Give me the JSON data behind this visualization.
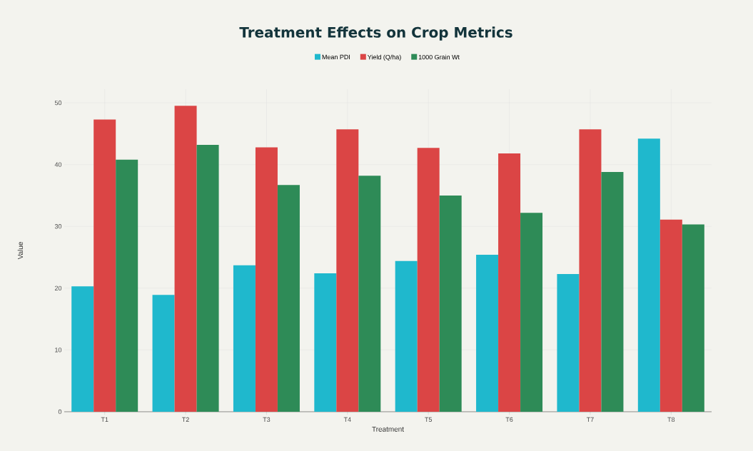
{
  "chart_data": {
    "type": "bar",
    "title": "Treatment Effects on Crop Metrics",
    "xlabel": "Treatment",
    "ylabel": "Value",
    "categories": [
      "T1",
      "T2",
      "T3",
      "T4",
      "T5",
      "T6",
      "T7",
      "T8"
    ],
    "series": [
      {
        "name": "Mean PDI",
        "color": "#1fb8cd",
        "values": [
          20.3,
          18.9,
          23.7,
          22.4,
          24.4,
          25.4,
          22.3,
          44.2
        ]
      },
      {
        "name": "Yield (Q/ha)",
        "color": "#db4545",
        "values": [
          47.3,
          49.5,
          42.8,
          45.7,
          42.7,
          41.8,
          45.7,
          31.1
        ]
      },
      {
        "name": "1000 Grain Wt",
        "color": "#2e8b57",
        "values": [
          40.8,
          43.2,
          36.7,
          38.2,
          35.0,
          32.2,
          38.8,
          30.3
        ]
      }
    ],
    "ylim": [
      0,
      52.2
    ],
    "yticks": [
      0,
      10,
      20,
      30,
      40,
      50
    ],
    "grid": true,
    "legend": "top"
  }
}
